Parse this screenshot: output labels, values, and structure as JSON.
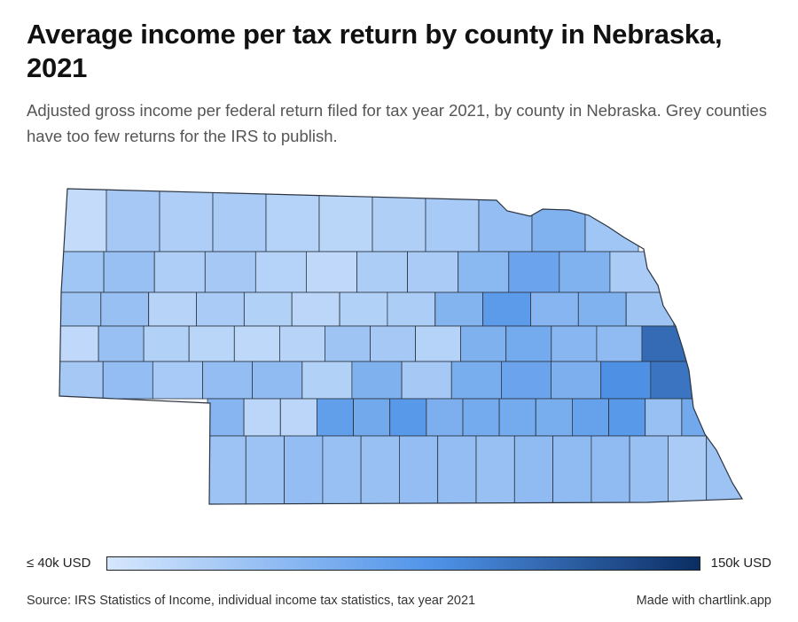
{
  "header": {
    "title": "Average income per tax return by county in Nebraska, 2021",
    "subtitle": "Adjusted gross income per federal return filed for tax year 2021, by county in Nebraska. Grey counties have too few returns for the IRS to publish."
  },
  "legend": {
    "min_label": "≤ 40k USD",
    "max_label": "150k USD",
    "min_value": 40,
    "max_value": 150,
    "color_low": "#d6e7fd",
    "color_mid": "#4f93e8",
    "color_high": "#0b2d63"
  },
  "footer": {
    "source": "Source: IRS Statistics of Income, individual income tax statistics, tax year 2021",
    "credit": "Made with chartlink.app"
  },
  "colors": {
    "county_stroke": "#2b3440",
    "background": "#ffffff"
  },
  "chart_data": {
    "type": "choropleth",
    "unit": "USD (thousands)",
    "scale_min": 40,
    "scale_max": 150,
    "counties_by_row": [
      [
        48,
        62,
        58,
        60,
        55,
        53,
        57,
        61,
        70,
        78,
        64
      ],
      [
        64,
        68,
        58,
        62,
        55,
        50,
        59,
        60,
        74,
        88,
        78,
        60
      ],
      [
        65,
        68,
        54,
        60,
        56,
        52,
        56,
        59,
        77,
        95,
        76,
        78,
        65
      ],
      [
        50,
        68,
        56,
        53,
        51,
        54,
        65,
        62,
        55,
        79,
        84,
        75,
        72,
        120
      ],
      [
        62,
        70,
        61,
        70,
        72,
        56,
        79,
        62,
        82,
        88,
        80,
        102,
        115
      ],
      [
        76,
        52,
        52,
        92,
        85,
        96,
        80,
        84,
        84,
        82,
        90,
        96,
        68,
        85
      ],
      [
        66,
        66,
        70,
        68,
        68,
        70,
        70,
        68,
        72,
        72,
        72,
        68,
        60,
        66
      ]
    ]
  }
}
